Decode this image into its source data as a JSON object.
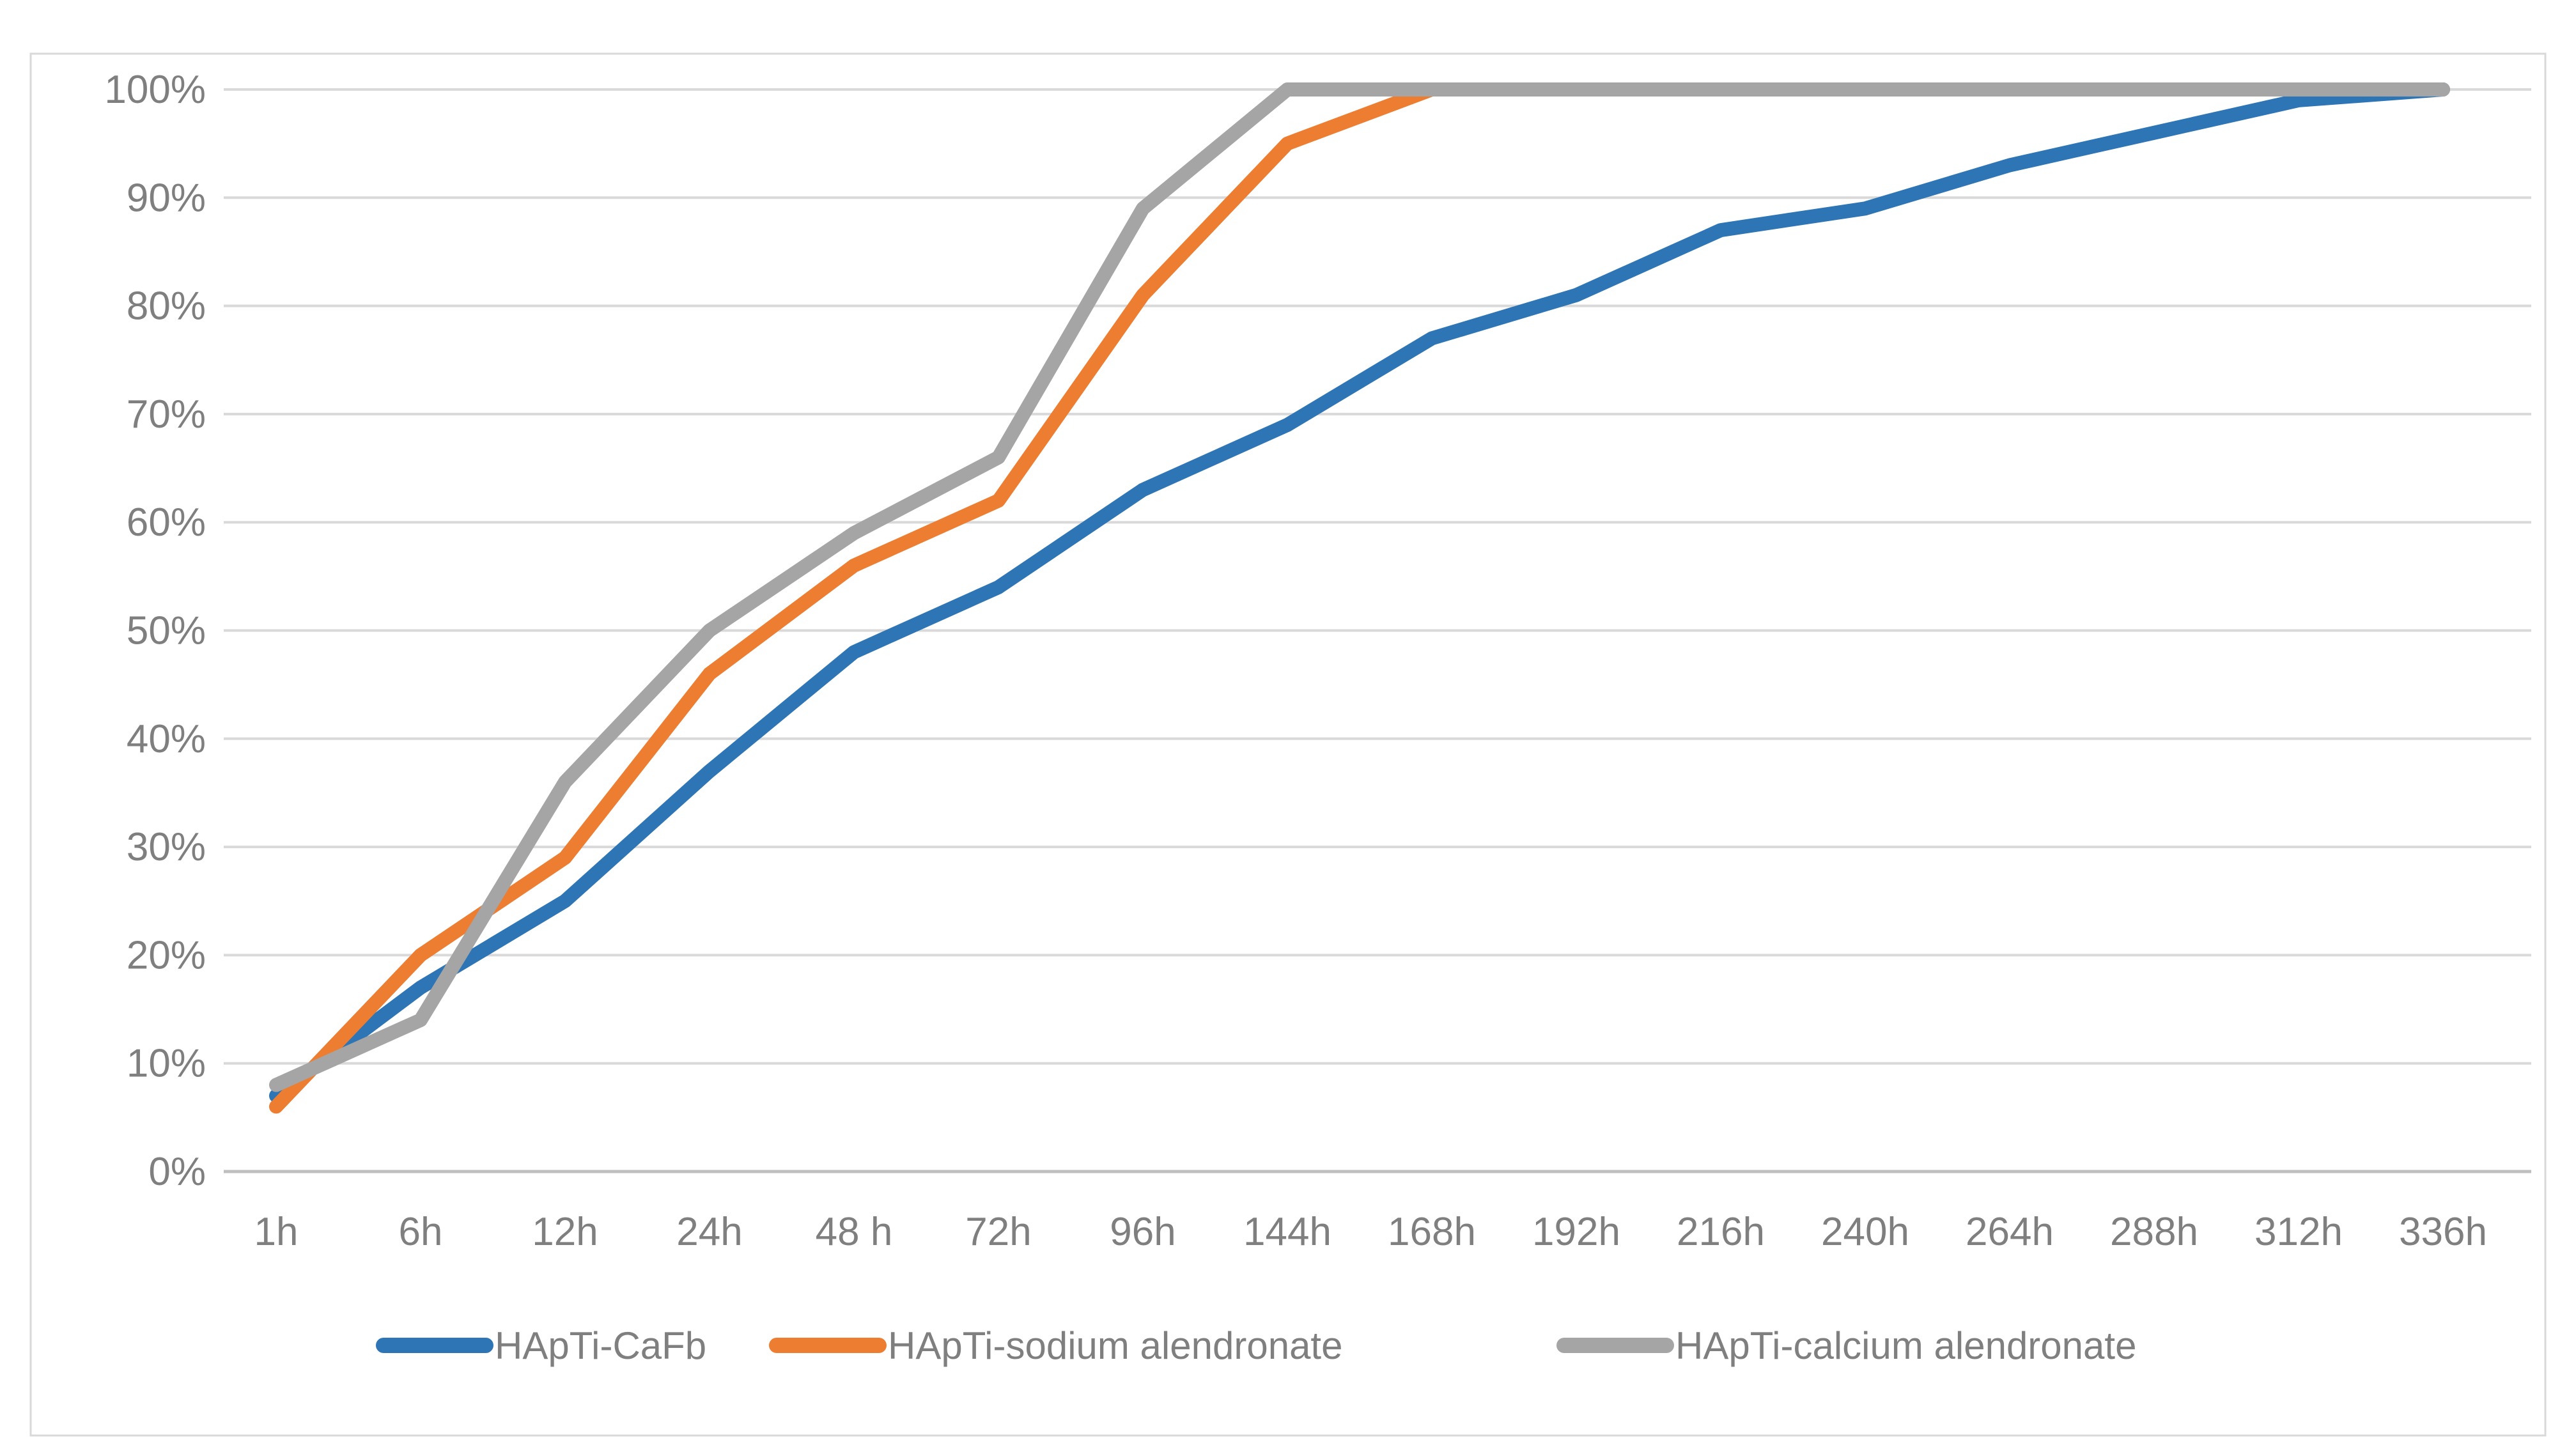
{
  "chart_data": {
    "type": "line",
    "title": "",
    "categories": [
      "1h",
      "6h",
      "12h",
      "24h",
      "48 h",
      "72h",
      "96h",
      "144h",
      "168h",
      "192h",
      "216h",
      "240h",
      "264h",
      "288h",
      "312h",
      "336h"
    ],
    "y_axis": {
      "ticks": [
        "0%",
        "10%",
        "20%",
        "30%",
        "40%",
        "50%",
        "60%",
        "70%",
        "80%",
        "90%",
        "100%"
      ],
      "min": 0,
      "max": 100,
      "grid": true
    },
    "legend_position": "bottom",
    "series": [
      {
        "name": "HApTi-CaFb",
        "color": "#2E75B6",
        "values": [
          7,
          17,
          25,
          37,
          48,
          54,
          63,
          69,
          77,
          81,
          87,
          89,
          93,
          96,
          99,
          100
        ]
      },
      {
        "name": "HApTi-sodium alendronate",
        "color": "#ED7D31",
        "values": [
          6,
          20,
          29,
          46,
          56,
          62,
          81,
          95,
          100,
          null,
          null,
          null,
          null,
          null,
          null,
          null
        ]
      },
      {
        "name": "HApTi-calcium alendronate",
        "color": "#A5A5A5",
        "values": [
          8,
          14,
          36,
          50,
          59,
          66,
          89,
          100,
          100,
          100,
          100,
          100,
          100,
          100,
          100,
          100
        ]
      }
    ]
  },
  "colors": {
    "gridline": "#D9D9D9",
    "axis_line": "#BFBFBF",
    "tick_label": "#7F7F7F",
    "legend_label": "#7F7F7F",
    "chart_border": "#D9D9D9",
    "background": "#FFFFFF"
  }
}
